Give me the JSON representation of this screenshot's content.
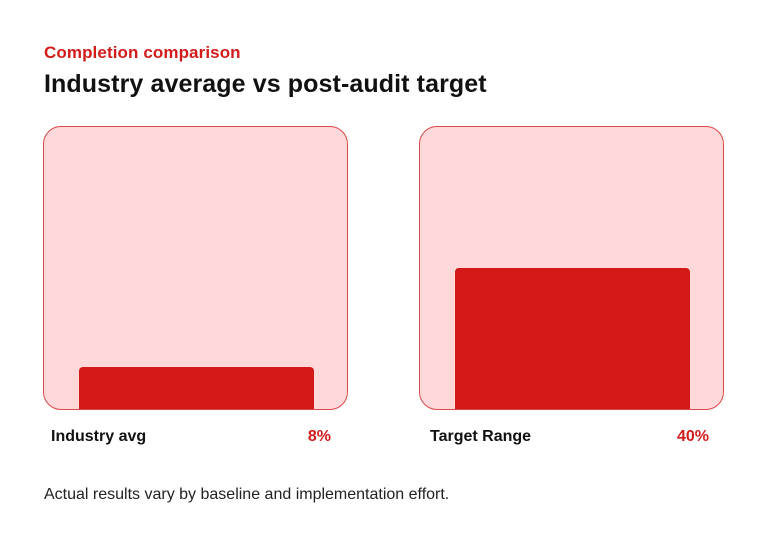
{
  "chart_data": {
    "type": "bar",
    "subtitle": "Completion comparison",
    "title": "Industry average vs post-audit target",
    "categories": [
      "Industry avg",
      "Target Range"
    ],
    "values": [
      8,
      40
    ],
    "value_labels": [
      "8%",
      "40%"
    ],
    "unit": "%",
    "ylim": [
      0,
      100
    ],
    "grid": false,
    "footnote": "Actual results vary by baseline and implementation effort.",
    "colors": {
      "bar": "#d31818",
      "track": "#ffd8da",
      "accent_text": "#d21c1c"
    }
  }
}
